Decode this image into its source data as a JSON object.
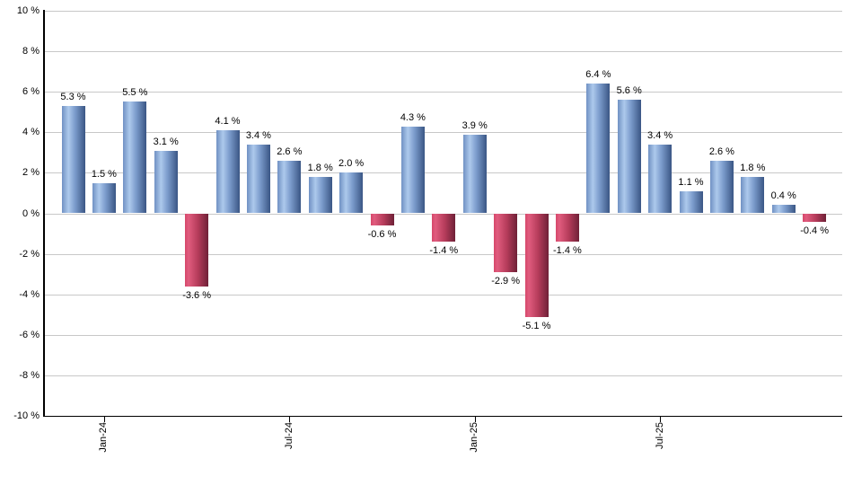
{
  "chart_data": {
    "type": "bar",
    "title": "",
    "xlabel": "",
    "ylabel": "",
    "values": [
      5.3,
      1.5,
      5.5,
      3.1,
      -3.6,
      4.1,
      3.4,
      2.6,
      1.8,
      2.0,
      -0.6,
      4.3,
      -1.4,
      3.9,
      -2.9,
      -5.1,
      -1.4,
      6.4,
      5.6,
      3.4,
      1.1,
      2.6,
      1.8,
      0.4,
      -0.4
    ],
    "bar_labels": [
      "5.3 %",
      "1.5 %",
      "5.5 %",
      "3.1 %",
      "-3.6 %",
      "4.1 %",
      "3.4 %",
      "2.6 %",
      "1.8 %",
      "2.0 %",
      "-0.6 %",
      "4.3 %",
      "-1.4 %",
      "3.9 %",
      "-2.9 %",
      "-5.1 %",
      "-1.4 %",
      "6.4 %",
      "5.6 %",
      "3.4 %",
      "1.1 %",
      "2.6 %",
      "1.8 %",
      "0.4 %",
      "-0.4 %"
    ],
    "y_axis": {
      "ylim": [
        -10,
        10
      ],
      "tick_values": [
        10,
        8,
        6,
        4,
        2,
        0,
        -2,
        -4,
        -6,
        -8,
        -10
      ],
      "tick_labels": [
        "10 %",
        "8 %",
        "6 %",
        "4 %",
        "2 %",
        "0 %",
        "-2 %",
        "-4 %",
        "-6 %",
        "-8 %",
        "-10 %"
      ]
    },
    "x_axis": {
      "tick_labels": [
        "Jan-24",
        "Jul-24",
        "Jan-25",
        "Jul-25"
      ],
      "tick_bar_indices": [
        1,
        7,
        13,
        19
      ]
    },
    "grid": true,
    "legend": false,
    "colors": {
      "positive_bar_gradient": [
        "#7091c3",
        "#adc9ec",
        "#7d9dcd",
        "#3a5685"
      ],
      "negative_bar_gradient": [
        "#d6476a",
        "#e05c7e",
        "#b63c5b",
        "#6f2137"
      ],
      "gridline": "#c8c8c8",
      "axis": "#000000",
      "label_text": "#000000",
      "background": "#ffffff"
    }
  }
}
